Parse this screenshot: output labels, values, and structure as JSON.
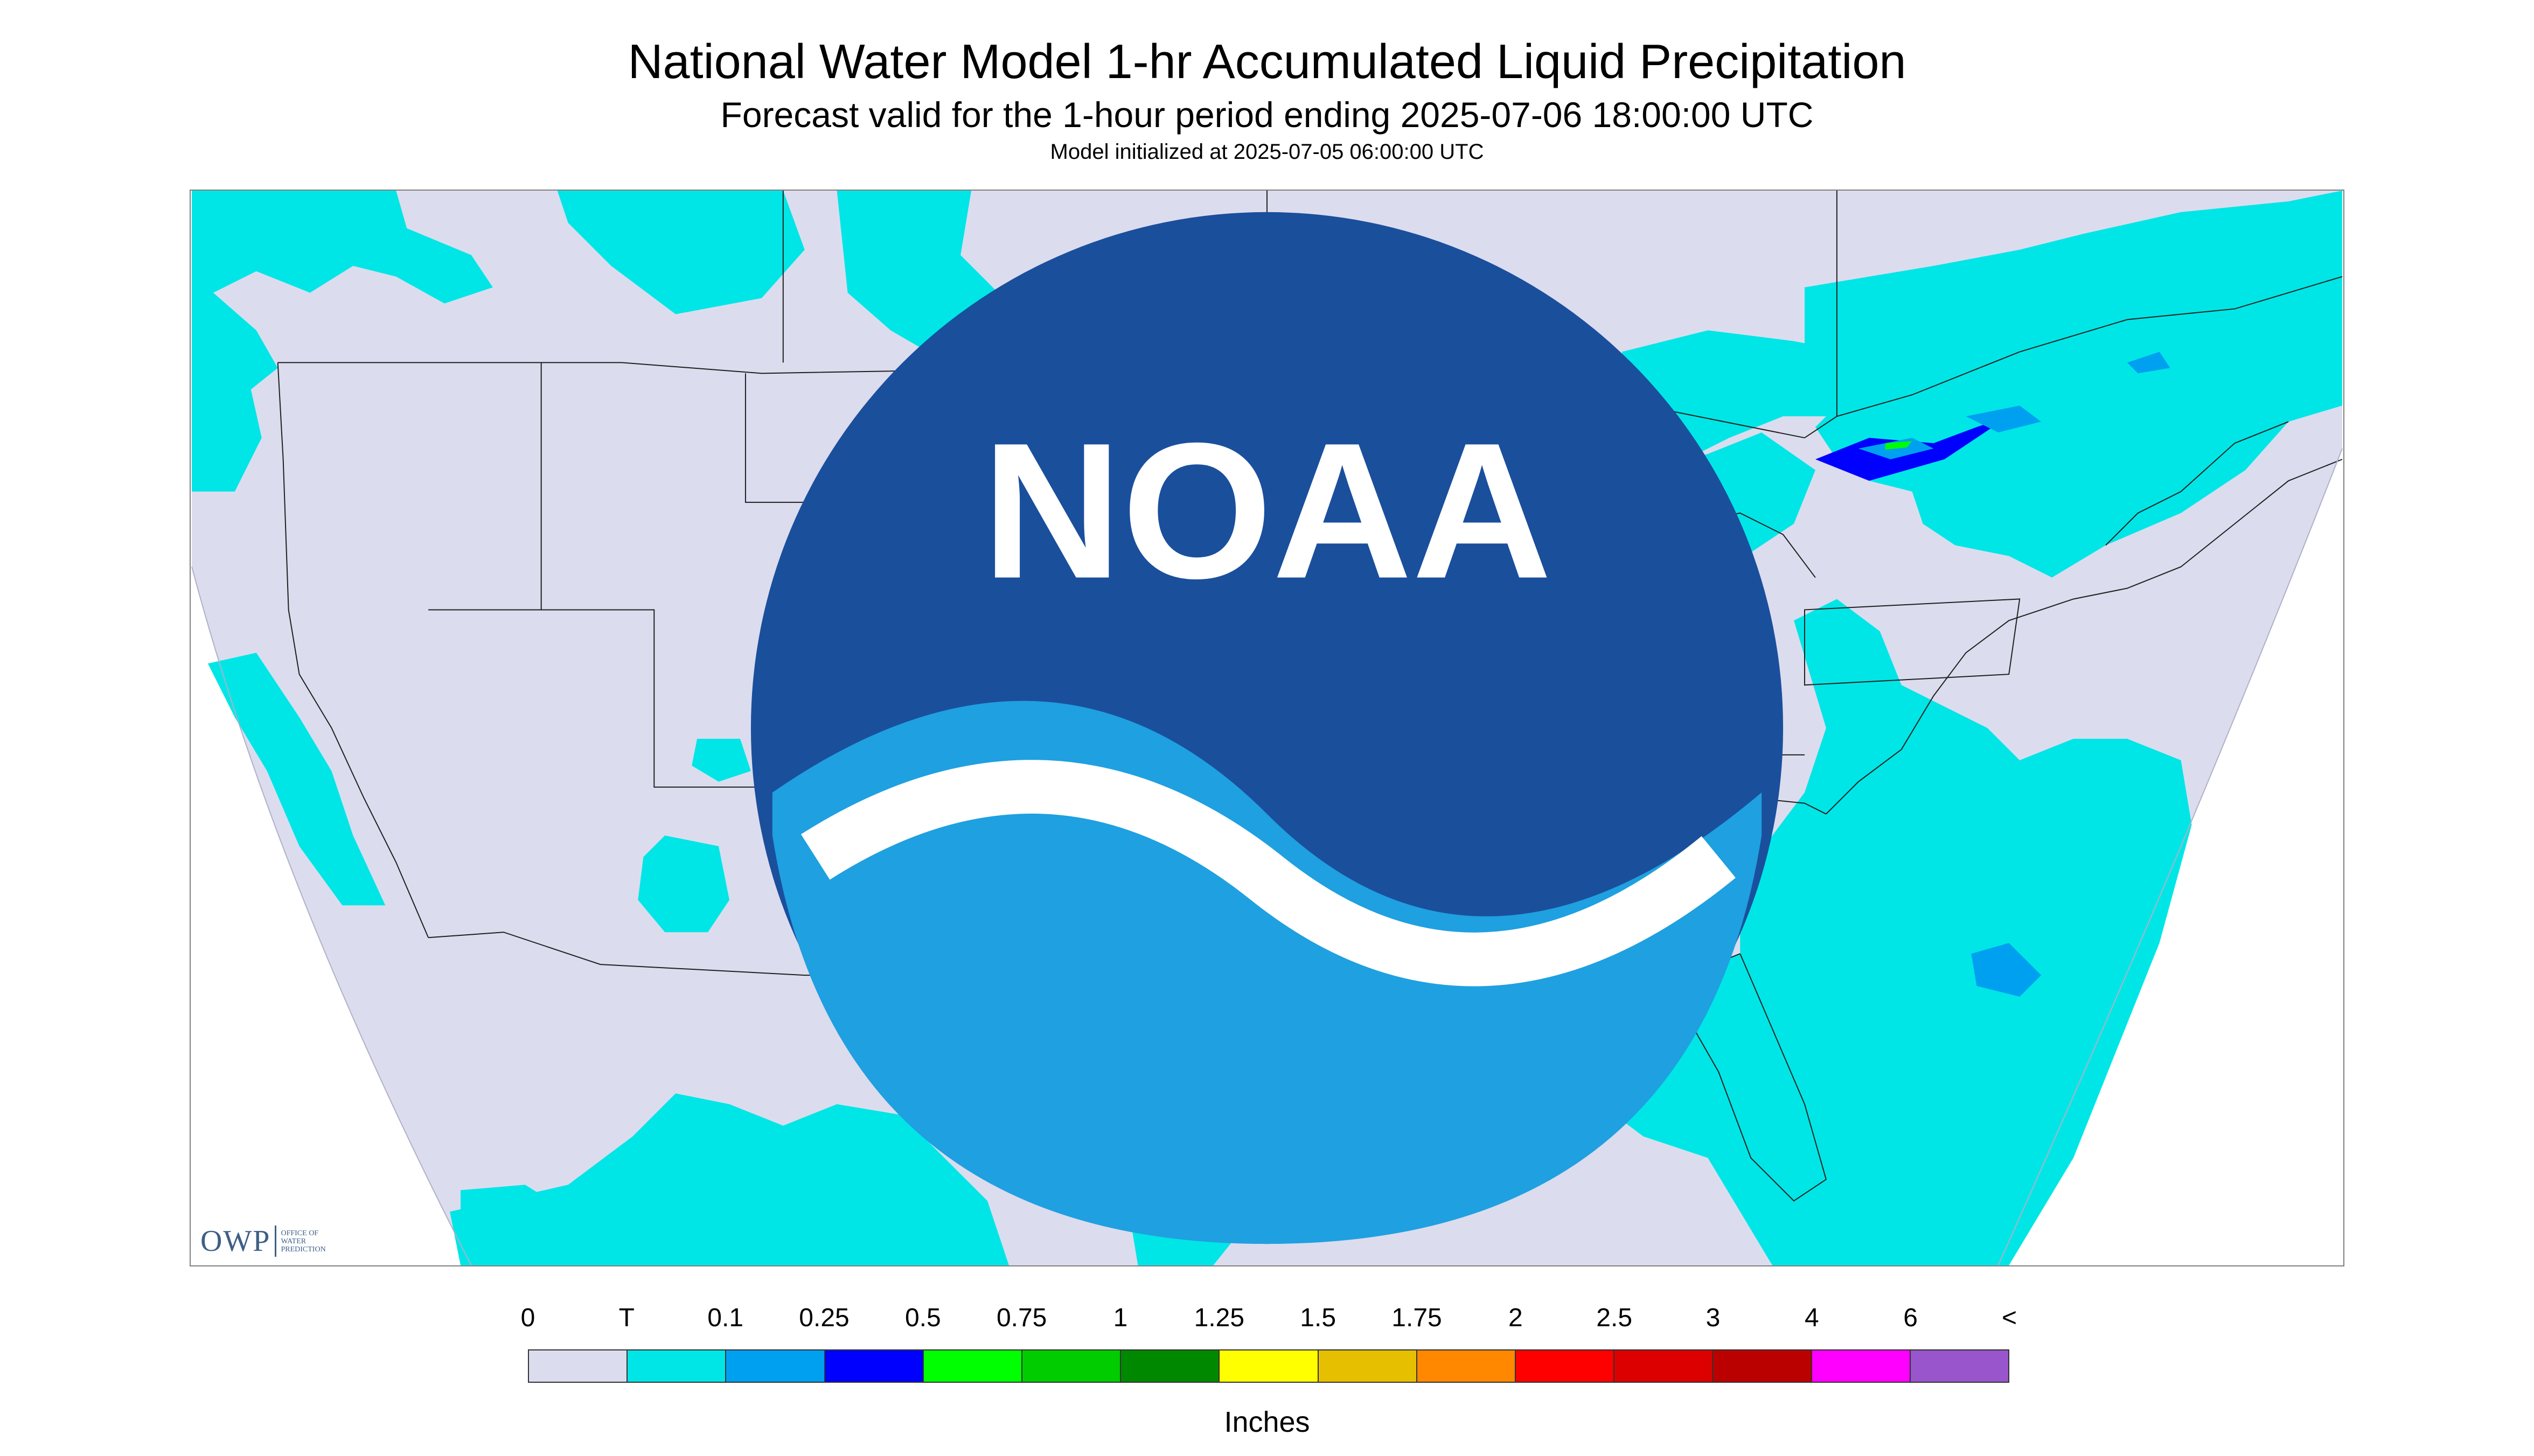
{
  "title": "National Water Model 1-hr Accumulated Liquid Precipitation",
  "subtitle": "Forecast valid for the 1-hour period ending 2025-07-06 18:00:00 UTC",
  "init_text": "Model initialized at 2025-07-05 06:00:00 UTC",
  "logo": {
    "owp_text": "OWP",
    "owp_full": [
      "OFFICE OF",
      "WATER",
      "PREDICTION"
    ],
    "noaa_text": "NOAA"
  },
  "colors": {
    "no_precip": "#dcdcef",
    "trace": "#00e6e6",
    "land_border": "#202020",
    "outside_domain": "#ffffff"
  },
  "legend": {
    "units": "Inches",
    "labels": [
      "0",
      "T",
      "0.1",
      "0.25",
      "0.5",
      "0.75",
      "1",
      "1.25",
      "1.5",
      "1.75",
      "2",
      "2.5",
      "3",
      "4",
      "6",
      "<"
    ],
    "colors": [
      "#dcdcef",
      "#00e6e6",
      "#00a0f0",
      "#0000ff",
      "#00ff00",
      "#00cc00",
      "#008800",
      "#ffff00",
      "#e6c000",
      "#ff8800",
      "#ff0000",
      "#dd0000",
      "#bb0000",
      "#ff00ff",
      "#9955cc"
    ]
  }
}
